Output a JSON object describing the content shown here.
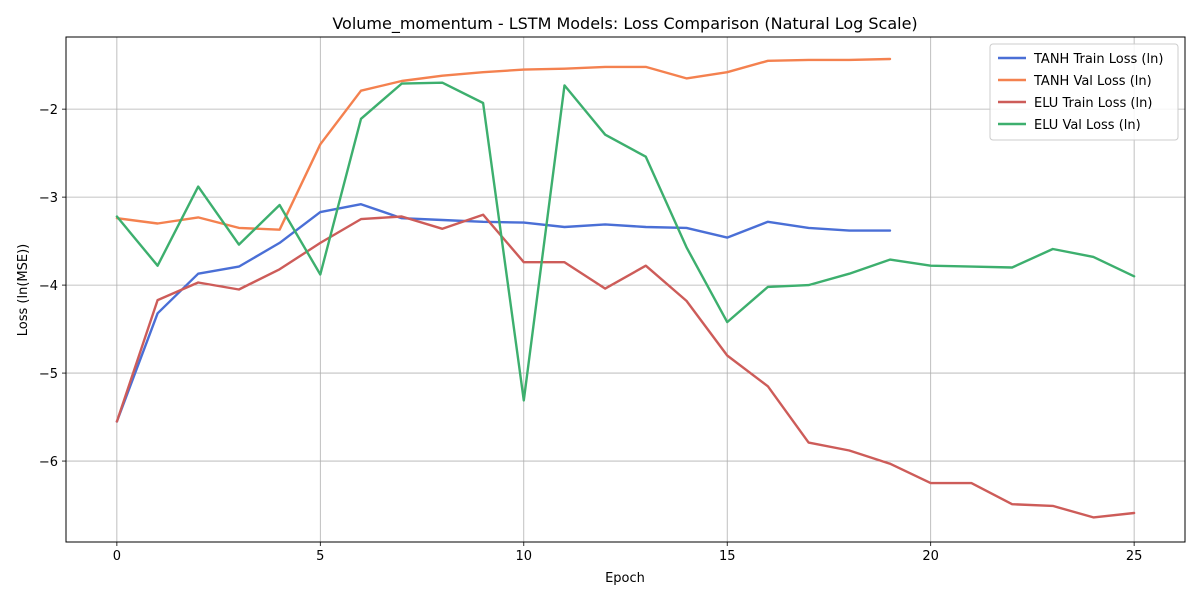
{
  "chart_data": {
    "type": "line",
    "title": "Volume_momentum - LSTM Models: Loss Comparison (Natural Log Scale)",
    "xlabel": "Epoch",
    "ylabel": "Loss (ln(MSE))",
    "xlim": [
      -1.25,
      26.25
    ],
    "ylim": [
      -6.92,
      -1.18
    ],
    "x_ticks": [
      0,
      5,
      10,
      15,
      20,
      25
    ],
    "x_tick_labels": [
      "0",
      "5",
      "10",
      "15",
      "20",
      "25"
    ],
    "y_ticks": [
      -6,
      -5,
      -4,
      -3,
      -2
    ],
    "y_tick_labels": [
      "−6",
      "−5",
      "−4",
      "−3",
      "−2"
    ],
    "grid": true,
    "legend_position": "top-right",
    "series": [
      {
        "name": "TANH Train Loss (ln)",
        "color": "#4a6fd6",
        "x": [
          0,
          1,
          2,
          3,
          4,
          5,
          6,
          7,
          8,
          9,
          10,
          11,
          12,
          13,
          14,
          15,
          16,
          17,
          18,
          19
        ],
        "values": [
          -5.55,
          -4.32,
          -3.87,
          -3.79,
          -3.52,
          -3.17,
          -3.08,
          -3.24,
          -3.26,
          -3.28,
          -3.29,
          -3.34,
          -3.31,
          -3.34,
          -3.35,
          -3.46,
          -3.28,
          -3.35,
          -3.38,
          -3.38
        ]
      },
      {
        "name": "TANH Val Loss (ln)",
        "color": "#f4814f",
        "x": [
          0,
          1,
          2,
          3,
          4,
          5,
          6,
          7,
          8,
          9,
          10,
          11,
          12,
          13,
          14,
          15,
          16,
          17,
          18,
          19
        ],
        "values": [
          -3.24,
          -3.3,
          -3.23,
          -3.35,
          -3.37,
          -2.4,
          -1.79,
          -1.68,
          -1.62,
          -1.58,
          -1.55,
          -1.54,
          -1.52,
          -1.52,
          -1.65,
          -1.58,
          -1.45,
          -1.44,
          -1.44,
          -1.43
        ]
      },
      {
        "name": "ELU Train Loss (ln)",
        "color": "#cd5c59",
        "x": [
          0,
          1,
          2,
          3,
          4,
          5,
          6,
          7,
          8,
          9,
          10,
          11,
          12,
          13,
          14,
          15,
          16,
          17,
          18,
          19,
          20,
          21,
          22,
          23,
          24,
          25
        ],
        "values": [
          -5.55,
          -4.17,
          -3.97,
          -4.05,
          -3.82,
          -3.52,
          -3.25,
          -3.22,
          -3.36,
          -3.2,
          -3.74,
          -3.74,
          -4.04,
          -3.78,
          -4.18,
          -4.8,
          -5.15,
          -5.79,
          -5.88,
          -6.03,
          -6.25,
          -6.25,
          -6.49,
          -6.51,
          -6.64,
          -6.59
        ]
      },
      {
        "name": "ELU Val Loss (ln)",
        "color": "#3daf6e",
        "x": [
          0,
          1,
          2,
          3,
          4,
          5,
          6,
          7,
          8,
          9,
          10,
          11,
          12,
          13,
          14,
          15,
          16,
          17,
          18,
          19,
          20,
          21,
          22,
          23,
          24,
          25
        ],
        "values": [
          -3.22,
          -3.78,
          -2.88,
          -3.54,
          -3.09,
          -3.88,
          -2.11,
          -1.71,
          -1.7,
          -1.93,
          -5.31,
          -1.73,
          -2.29,
          -2.54,
          -3.57,
          -4.42,
          -4.02,
          -4.0,
          -3.87,
          -3.71,
          -3.78,
          -3.79,
          -3.8,
          -3.59,
          -3.68,
          -3.9
        ]
      }
    ]
  }
}
